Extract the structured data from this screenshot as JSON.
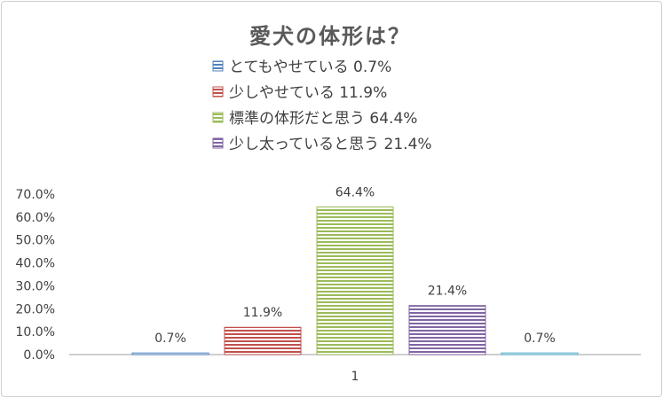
{
  "chart_data": {
    "type": "bar",
    "title": "愛犬の体形は？",
    "categories": [
      "1"
    ],
    "series": [
      {
        "name": "とてもやせている 0.7%",
        "values": [
          0.7
        ],
        "label": "0.7%",
        "color": "#4f81bd"
      },
      {
        "name": "少しやせている 11.9%",
        "values": [
          11.9
        ],
        "label": "11.9%",
        "color": "#c0504d"
      },
      {
        "name": "標準の体形だと思う 64.4%",
        "values": [
          64.4
        ],
        "label": "64.4%",
        "color": "#9bbb59"
      },
      {
        "name": "少し太っていると思う 21.4%",
        "values": [
          21.4
        ],
        "label": "21.4%",
        "color": "#8064a2"
      },
      {
        "name": "",
        "values": [
          0.7
        ],
        "label": "0.7%",
        "color": "#4bacc6"
      }
    ],
    "y_ticks": [
      "0.0%",
      "10.0%",
      "20.0%",
      "30.0%",
      "40.0%",
      "50.0%",
      "60.0%",
      "70.0%"
    ],
    "ylim": [
      0,
      70
    ],
    "legend_position": "top",
    "grid": false
  }
}
